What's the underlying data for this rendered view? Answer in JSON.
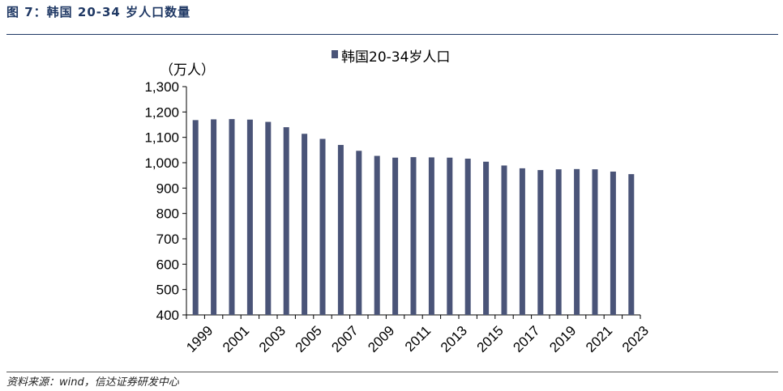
{
  "figure": {
    "title": "图 7：韩国 20-34 岁人口数量",
    "source": "资料来源：wind，信达证券研发中心"
  },
  "chart_data": {
    "type": "bar",
    "title": "",
    "xlabel": "",
    "ylabel": "（万人）",
    "ylim": [
      400,
      1300
    ],
    "yticks": [
      400,
      500,
      600,
      700,
      800,
      900,
      1000,
      1100,
      1200,
      1300
    ],
    "ytick_labels": [
      "400",
      "500",
      "600",
      "700",
      "800",
      "900",
      "1,000",
      "1,100",
      "1,200",
      "1,300"
    ],
    "xtick_labels": [
      "1999",
      "2001",
      "2003",
      "2005",
      "2007",
      "2009",
      "2011",
      "2013",
      "2015",
      "2017",
      "2019",
      "2021",
      "2023"
    ],
    "categories": [
      "1999",
      "2000",
      "2001",
      "2002",
      "2003",
      "2004",
      "2005",
      "2006",
      "2007",
      "2008",
      "2009",
      "2010",
      "2011",
      "2012",
      "2013",
      "2014",
      "2015",
      "2016",
      "2017",
      "2018",
      "2019",
      "2020",
      "2021",
      "2022",
      "2023"
    ],
    "series": [
      {
        "name": "韩国20-34岁人口",
        "color": "#4a5478",
        "values": [
          1168,
          1171,
          1172,
          1170,
          1161,
          1140,
          1114,
          1094,
          1070,
          1047,
          1027,
          1020,
          1022,
          1021,
          1020,
          1016,
          1004,
          989,
          978,
          971,
          974,
          975,
          974,
          965,
          955
        ]
      }
    ],
    "grid": false,
    "legend": "top-center"
  }
}
